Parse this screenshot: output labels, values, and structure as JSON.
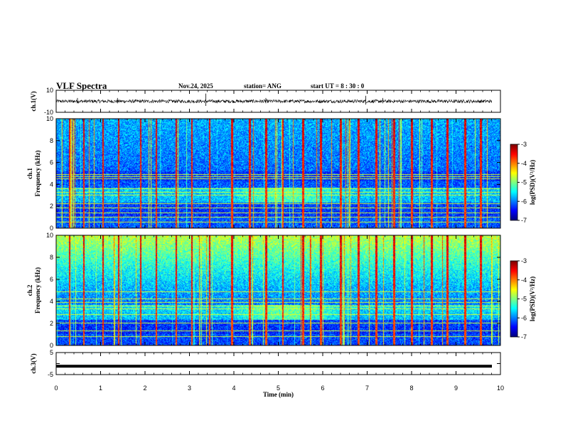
{
  "header": {
    "title": "VLF Spectra",
    "date": "Nov.24, 2025",
    "station": "station= ANG",
    "start": "start  UT =   8  : 30 : 0"
  },
  "colors": {
    "trace": "#000000",
    "background": "#ffffff",
    "spectrogram_low": "#00007f",
    "spectrogram_high": "#7f0000"
  },
  "chart_data": [
    {
      "id": "ch1-waveform",
      "type": "line",
      "ylabel": "ch.1(V)",
      "ylim": [
        -10,
        10
      ],
      "yticks": [
        {
          "v": 10,
          "label": "10"
        },
        {
          "v": -10,
          "label": "-10"
        }
      ],
      "baseline_v": 0,
      "noise_amplitude_v": 1.5,
      "spike_x_min": [
        0.48,
        1.38,
        3.37,
        4.72,
        6.97,
        7.35
      ],
      "spike_amp_v": [
        3,
        3,
        7,
        3,
        5,
        3
      ]
    },
    {
      "id": "ch1-spectrogram",
      "type": "heatmap",
      "ylabel": "ch.1\nFrequency (kHz)",
      "ylim": [
        0,
        10
      ],
      "yticks": [
        0,
        2,
        4,
        6,
        8,
        10
      ],
      "colorbar": {
        "label": "log(PSD)(V²/Hz)",
        "range": [
          -7,
          -3
        ],
        "ticks": [
          -3,
          -4,
          -5,
          -6,
          -7
        ]
      },
      "tone_lines_khz": [
        0.5,
        1.0,
        1.4,
        1.8,
        2.2,
        3.0,
        3.3,
        3.6,
        4.5,
        4.7,
        4.9
      ],
      "enhanced_band_khz": [
        2.3,
        3.7
      ],
      "enhanced_interval_min": [
        3.8,
        6.5
      ],
      "sferic_x_min": [
        0.3,
        0.62,
        1.05,
        1.4,
        1.9,
        2.25,
        2.7,
        3.05,
        3.45,
        3.95,
        4.35,
        4.72,
        5.1,
        5.55,
        5.95,
        6.4,
        6.8,
        7.2,
        7.6,
        8.0,
        8.45,
        8.8,
        9.2,
        9.55
      ]
    },
    {
      "id": "ch2-spectrogram",
      "type": "heatmap",
      "ylabel": "ch.2\nFrequency (kHz)",
      "ylim": [
        0,
        10
      ],
      "yticks": [
        0,
        2,
        4,
        6,
        8,
        10
      ],
      "colorbar": {
        "label": "log(PSD)(V²/Hz)",
        "range": [
          -7,
          -3
        ],
        "ticks": [
          -3,
          -4,
          -5,
          -6,
          -7
        ]
      },
      "tone_lines_khz": [
        0.8,
        1.3,
        2.0,
        2.8,
        3.3,
        3.6,
        3.9,
        4.2,
        4.9
      ],
      "enhanced_band_khz": [
        2.3,
        3.7
      ],
      "enhanced_interval_min": [
        3.8,
        6.5
      ],
      "sferic_x_min": [
        0.3,
        0.62,
        1.05,
        1.4,
        1.9,
        2.25,
        2.7,
        3.05,
        3.45,
        3.95,
        4.35,
        4.72,
        5.1,
        5.55,
        5.95,
        6.4,
        6.8,
        7.2,
        7.6,
        8.0,
        8.45,
        8.8,
        9.2,
        9.55
      ]
    },
    {
      "id": "ch3-waveform",
      "type": "line",
      "ylabel": "ch.3(V)",
      "ylim": [
        -5,
        5
      ],
      "yticks": [
        {
          "v": 5,
          "label": "5"
        },
        {
          "v": 0,
          "label": ""
        },
        {
          "v": -5,
          "label": "-5"
        }
      ],
      "level_v": -1.2
    }
  ],
  "xaxis": {
    "xlabel": "Time (min)",
    "xlim": [
      0,
      10
    ],
    "ticks": [
      0,
      1,
      2,
      3,
      4,
      5,
      6,
      7,
      8,
      9,
      10
    ]
  }
}
